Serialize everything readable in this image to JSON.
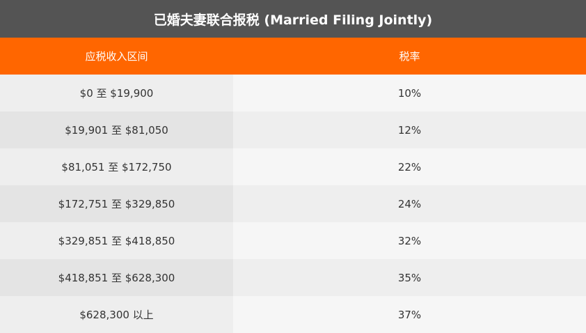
{
  "title": "已婚夫妻联合报税 (Married Filing Jointly)",
  "headers": [
    "应税收入区间",
    "税率"
  ],
  "rows": [
    {
      "range": "$0 至 $19,900",
      "rate": "10%"
    },
    {
      "range": "$19,901 至 $81,050",
      "rate": "12%"
    },
    {
      "range": "$81,051 至 $172,750",
      "rate": "22%"
    },
    {
      "range": "$172,751 至 $329,850",
      "rate": "24%"
    },
    {
      "range": "$329,851 至 $418,850",
      "rate": "32%"
    },
    {
      "range": "$418,851 至 $628,300",
      "rate": "35%"
    },
    {
      "range": "$628,300 以上",
      "rate": "37%"
    }
  ],
  "colors": {
    "title_bg": "#545454",
    "header_bg": "#ff6600"
  }
}
